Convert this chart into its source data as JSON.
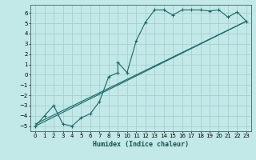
{
  "title": "",
  "xlabel": "Humidex (Indice chaleur)",
  "ylabel": "",
  "bg_color": "#c2e8e8",
  "grid_color": "#a8d0d0",
  "line_color": "#1a6868",
  "xlim": [
    -0.5,
    23.5
  ],
  "ylim": [
    -5.5,
    6.8
  ],
  "xticks": [
    0,
    1,
    2,
    3,
    4,
    5,
    6,
    7,
    8,
    9,
    10,
    11,
    12,
    13,
    14,
    15,
    16,
    17,
    18,
    19,
    20,
    21,
    22,
    23
  ],
  "yticks": [
    -5,
    -4,
    -3,
    -2,
    -1,
    0,
    1,
    2,
    3,
    4,
    5,
    6
  ],
  "curve1_x": [
    0,
    1,
    2,
    3,
    4,
    5,
    6,
    7,
    8,
    9,
    9,
    10,
    11,
    12,
    13,
    14,
    15,
    16,
    17,
    18,
    19,
    20,
    21,
    22,
    23
  ],
  "curve1_y": [
    -5,
    -4,
    -3,
    -4.8,
    -5,
    -4.2,
    -3.8,
    -2.6,
    -0.2,
    0.2,
    1.2,
    0.2,
    3.3,
    5.1,
    6.3,
    6.3,
    5.8,
    6.3,
    6.3,
    6.3,
    6.2,
    6.3,
    5.6,
    6.1,
    5.2
  ],
  "line1_x": [
    0,
    23
  ],
  "line1_y": [
    -5.0,
    5.2
  ],
  "line2_x": [
    0,
    23
  ],
  "line2_y": [
    -4.8,
    5.2
  ]
}
